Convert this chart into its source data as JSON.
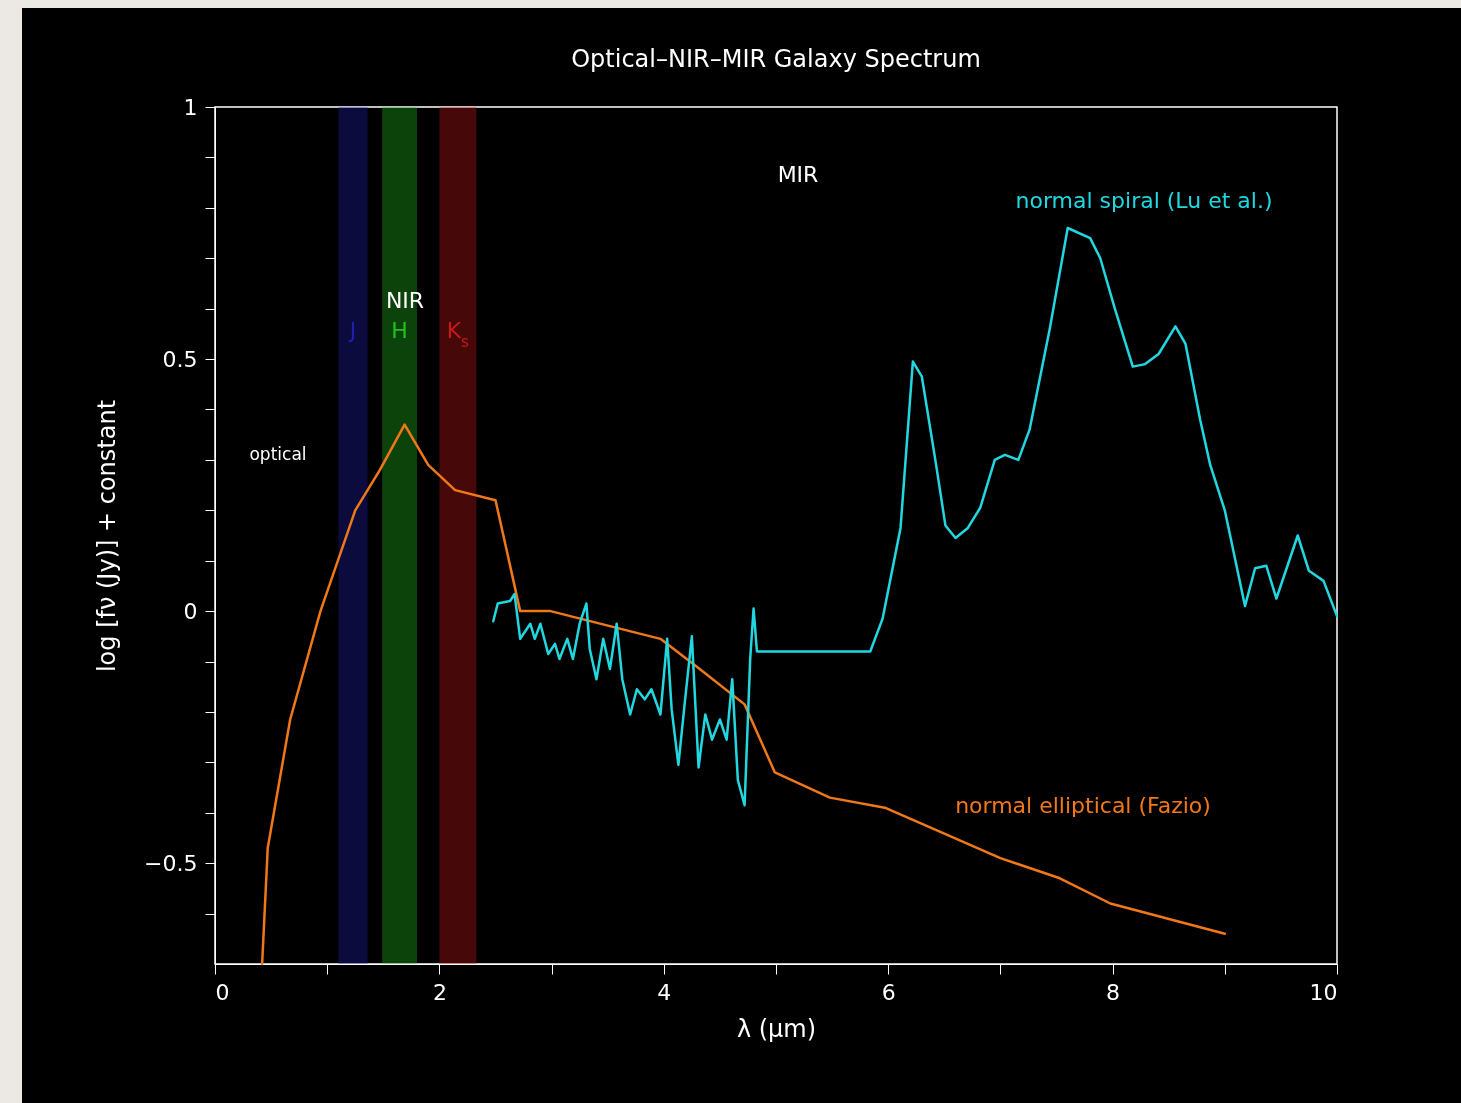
{
  "chart_data": {
    "type": "line",
    "title": "Optical–NIR–MIR Galaxy Spectrum",
    "xlabel": "λ (μm)",
    "ylabel": "log [fν (Jy)] + constant",
    "xlim": [
      0,
      10
    ],
    "ylim": [
      -0.7,
      1
    ],
    "xticks": [
      0,
      {
        "value": 1,
        "label": null
      },
      2,
      {
        "value": 3,
        "label": null
      },
      4,
      {
        "value": 5,
        "label": null
      },
      6,
      {
        "value": 7,
        "label": null
      },
      8,
      {
        "value": 9,
        "label": null
      },
      10
    ],
    "yticks": [
      {
        "value": -0.6,
        "label": null
      },
      {
        "value": -0.5,
        "label": "−0.5"
      },
      {
        "value": -0.4,
        "label": null
      },
      {
        "value": -0.3,
        "label": null
      },
      {
        "value": -0.2,
        "label": null
      },
      {
        "value": -0.1,
        "label": null
      },
      0,
      {
        "value": 0.1,
        "label": null
      },
      {
        "value": 0.2,
        "label": null
      },
      {
        "value": 0.3,
        "label": null
      },
      {
        "value": 0.4,
        "label": null
      },
      0.5,
      {
        "value": 0.6,
        "label": null
      },
      {
        "value": 0.7,
        "label": null
      },
      {
        "value": 0.8,
        "label": null
      },
      {
        "value": 0.9,
        "label": null
      },
      1
    ],
    "grid": false,
    "annotations": [
      "optical",
      "NIR",
      "MIR"
    ],
    "bands": [
      {
        "axis": "x",
        "from": 1.1,
        "to": 1.36,
        "label": "J",
        "color": "#2020b0"
      },
      {
        "axis": "x",
        "from": 1.49,
        "to": 1.8,
        "label": "H",
        "color": "#20c020"
      },
      {
        "axis": "x",
        "from": 2.0,
        "to": 2.33,
        "label": "K$_{s}$",
        "color": "#c81818"
      }
    ],
    "series": [
      {
        "name": "normal elliptical (Fazio)",
        "color": "#f07818",
        "x": [
          0.42,
          0.47,
          0.67,
          0.94,
          1.25,
          1.47,
          1.69,
          1.9,
          2.14,
          2.5,
          2.72,
          2.99,
          3.97,
          4.32,
          4.72,
          4.99,
          5.48,
          5.97,
          7.0,
          7.53,
          7.98,
          9.0
        ],
        "values": [
          -0.7,
          -0.47,
          -0.215,
          0.0,
          0.2,
          0.28,
          0.37,
          0.29,
          0.24,
          0.22,
          0.0,
          0.0,
          -0.055,
          -0.115,
          -0.185,
          -0.32,
          -0.37,
          -0.39,
          -0.49,
          -0.53,
          -0.58,
          -0.64
        ]
      },
      {
        "name": "normal spiral (Lu et al.)",
        "color": "#22d8e0",
        "x": [
          2.48,
          2.52,
          2.63,
          2.67,
          2.72,
          2.81,
          2.85,
          2.9,
          2.97,
          3.03,
          3.07,
          3.14,
          3.19,
          3.25,
          3.31,
          3.34,
          3.4,
          3.46,
          3.52,
          3.58,
          3.63,
          3.7,
          3.76,
          3.83,
          3.89,
          3.97,
          4.03,
          4.07,
          4.13,
          4.19,
          4.25,
          4.31,
          4.37,
          4.43,
          4.5,
          4.56,
          4.61,
          4.66,
          4.72,
          4.77,
          4.8,
          4.83,
          5.84,
          5.95,
          6.11,
          6.22,
          6.3,
          6.42,
          6.51,
          6.6,
          6.71,
          6.82,
          6.95,
          7.04,
          7.16,
          7.26,
          7.44,
          7.6,
          7.8,
          7.89,
          8.02,
          8.18,
          8.29,
          8.41,
          8.56,
          8.65,
          8.78,
          8.87,
          9.0,
          9.18,
          9.27,
          9.37,
          9.46,
          9.65,
          9.75,
          9.88,
          10.0
        ],
        "values": [
          -0.02,
          0.015,
          0.02,
          0.034,
          -0.055,
          -0.025,
          -0.055,
          -0.025,
          -0.085,
          -0.065,
          -0.095,
          -0.055,
          -0.095,
          -0.025,
          0.015,
          -0.075,
          -0.135,
          -0.055,
          -0.115,
          -0.025,
          -0.135,
          -0.205,
          -0.155,
          -0.175,
          -0.155,
          -0.205,
          -0.055,
          -0.195,
          -0.305,
          -0.175,
          -0.05,
          -0.31,
          -0.205,
          -0.255,
          -0.215,
          -0.255,
          -0.135,
          -0.335,
          -0.385,
          -0.095,
          0.005,
          -0.08,
          -0.08,
          -0.015,
          0.165,
          0.495,
          0.465,
          0.3,
          0.17,
          0.145,
          0.165,
          0.205,
          0.3,
          0.31,
          0.3,
          0.36,
          0.56,
          0.76,
          0.74,
          0.7,
          0.6,
          0.485,
          0.49,
          0.51,
          0.565,
          0.53,
          0.38,
          0.29,
          0.2,
          0.01,
          0.085,
          0.09,
          0.025,
          0.15,
          0.08,
          0.06,
          -0.01
        ]
      }
    ]
  }
}
